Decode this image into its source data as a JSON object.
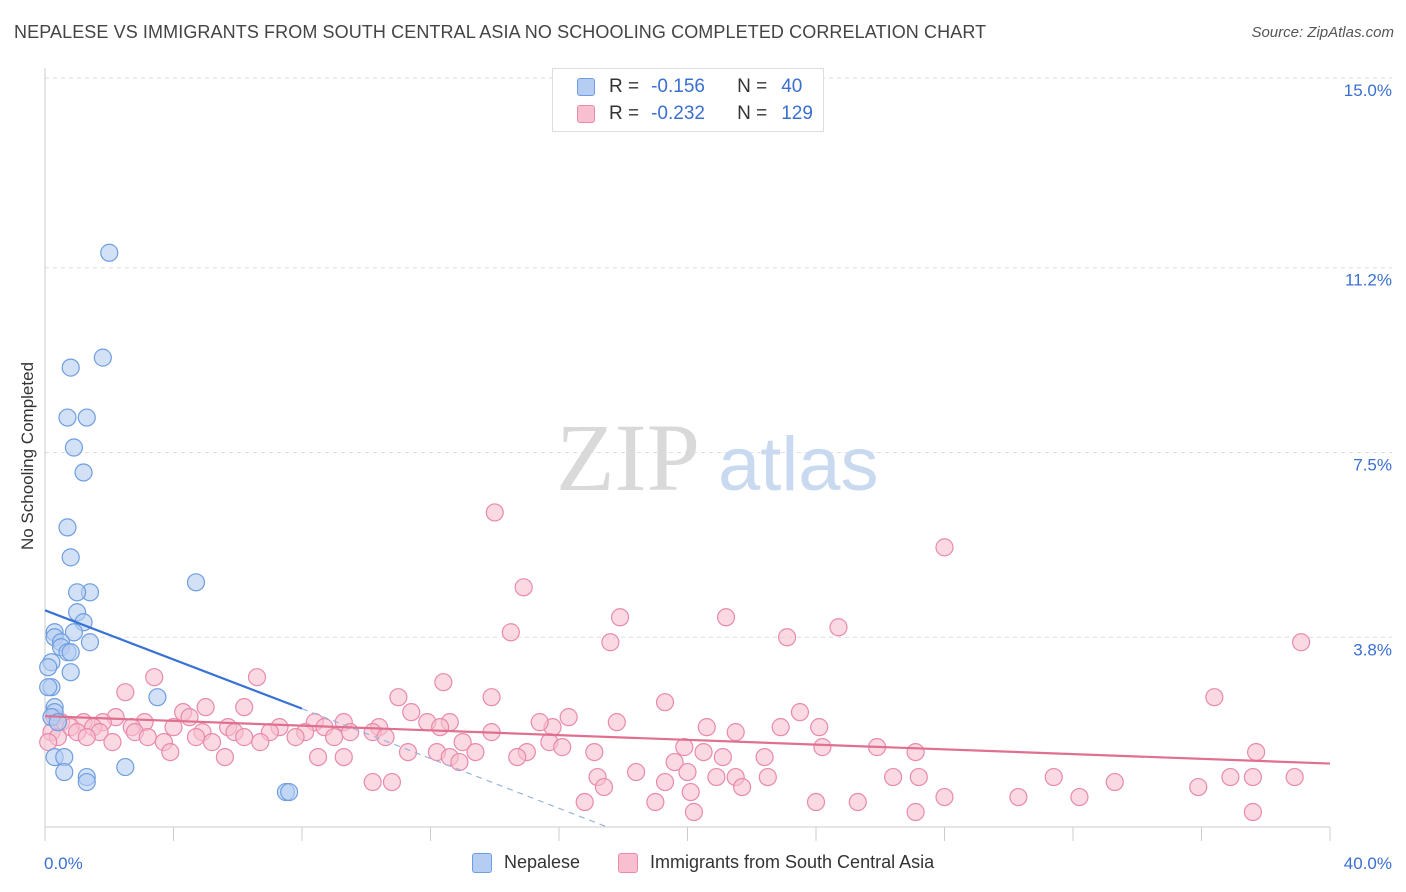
{
  "header": {
    "title": "NEPALESE VS IMMIGRANTS FROM SOUTH CENTRAL ASIA NO SCHOOLING COMPLETED CORRELATION CHART",
    "source": "Source: ZipAtlas.com"
  },
  "legend": {
    "rows": [
      {
        "r_label": "R =",
        "r_value": "-0.156",
        "n_label": "N =",
        "n_value": "40"
      },
      {
        "r_label": "R =",
        "r_value": "-0.232",
        "n_label": "N =",
        "n_value": "129"
      }
    ]
  },
  "watermark": {
    "zip": "ZIP",
    "atlas": "atlas"
  },
  "colors": {
    "nepalese_fill": "#b5cdf2",
    "nepalese_stroke": "#6f9ee0",
    "nepalese_line": "#3872d4",
    "immigrants_fill": "#f7bfd0",
    "immigrants_stroke": "#e98aab",
    "immigrants_line": "#e0708f",
    "tick_label": "#3a6fd0",
    "grid": "#dddddd"
  },
  "chart_data": {
    "type": "scatter",
    "title": "NEPALESE VS IMMIGRANTS FROM SOUTH CENTRAL ASIA NO SCHOOLING COMPLETED CORRELATION CHART",
    "xlabel": "",
    "ylabel": "No Schooling Completed",
    "xlim": [
      0,
      40
    ],
    "ylim": [
      0,
      15.0
    ],
    "y_ticks": [
      3.8,
      7.5,
      11.2,
      15.0
    ],
    "y_tick_labels": [
      "3.8%",
      "7.5%",
      "11.2%",
      "15.0%"
    ],
    "x_tick_labels": [
      "0.0%",
      "40.0%"
    ],
    "grid": true,
    "legend_position": "top-center",
    "series": [
      {
        "name": "Nepalese",
        "points": [
          [
            2.0,
            11.5
          ],
          [
            1.8,
            9.4
          ],
          [
            0.8,
            9.2
          ],
          [
            0.7,
            8.2
          ],
          [
            1.3,
            8.2
          ],
          [
            0.9,
            7.6
          ],
          [
            1.2,
            7.1
          ],
          [
            0.7,
            6.0
          ],
          [
            0.8,
            5.4
          ],
          [
            4.7,
            4.9
          ],
          [
            1.4,
            4.7
          ],
          [
            1.0,
            4.7
          ],
          [
            1.0,
            4.3
          ],
          [
            1.2,
            4.1
          ],
          [
            0.3,
            3.9
          ],
          [
            0.9,
            3.9
          ],
          [
            0.3,
            3.8
          ],
          [
            1.4,
            3.7
          ],
          [
            0.5,
            3.7
          ],
          [
            0.5,
            3.6
          ],
          [
            0.7,
            3.5
          ],
          [
            0.8,
            3.5
          ],
          [
            0.2,
            3.3
          ],
          [
            0.8,
            3.1
          ],
          [
            0.1,
            3.2
          ],
          [
            0.2,
            2.8
          ],
          [
            0.1,
            2.8
          ],
          [
            3.5,
            2.6
          ],
          [
            0.3,
            2.4
          ],
          [
            0.3,
            2.3
          ],
          [
            0.2,
            2.2
          ],
          [
            0.4,
            2.1
          ],
          [
            0.3,
            1.4
          ],
          [
            0.6,
            1.4
          ],
          [
            2.5,
            1.2
          ],
          [
            0.6,
            1.1
          ],
          [
            1.3,
            1.0
          ],
          [
            1.3,
            0.9
          ],
          [
            7.5,
            0.7
          ],
          [
            7.6,
            0.7
          ]
        ],
        "trend": {
          "x": [
            0,
            8
          ],
          "y": [
            4.34,
            2.37
          ],
          "dashed_to": [
            17.5,
            0
          ]
        }
      },
      {
        "name": "Immigrants from South Central Asia",
        "points": [
          [
            14.0,
            6.3
          ],
          [
            28.0,
            5.6
          ],
          [
            14.9,
            4.8
          ],
          [
            17.9,
            4.2
          ],
          [
            21.2,
            4.2
          ],
          [
            24.7,
            4.0
          ],
          [
            14.5,
            3.9
          ],
          [
            23.1,
            3.8
          ],
          [
            17.6,
            3.7
          ],
          [
            39.1,
            3.7
          ],
          [
            3.4,
            3.0
          ],
          [
            6.6,
            3.0
          ],
          [
            12.4,
            2.9
          ],
          [
            2.5,
            2.7
          ],
          [
            11.0,
            2.6
          ],
          [
            13.9,
            2.6
          ],
          [
            19.3,
            2.5
          ],
          [
            36.4,
            2.6
          ],
          [
            5.0,
            2.4
          ],
          [
            6.2,
            2.4
          ],
          [
            11.4,
            2.3
          ],
          [
            4.3,
            2.3
          ],
          [
            4.5,
            2.2
          ],
          [
            23.5,
            2.3
          ],
          [
            24.1,
            2.0
          ],
          [
            2.2,
            2.2
          ],
          [
            0.3,
            2.2
          ],
          [
            0.5,
            2.1
          ],
          [
            1.2,
            2.1
          ],
          [
            1.8,
            2.1
          ],
          [
            3.1,
            2.1
          ],
          [
            8.4,
            2.1
          ],
          [
            9.3,
            2.1
          ],
          [
            11.9,
            2.1
          ],
          [
            12.6,
            2.1
          ],
          [
            15.8,
            2.0
          ],
          [
            17.8,
            2.1
          ],
          [
            0.8,
            2.0
          ],
          [
            1.5,
            2.0
          ],
          [
            2.7,
            2.0
          ],
          [
            4.0,
            2.0
          ],
          [
            5.7,
            2.0
          ],
          [
            7.3,
            2.0
          ],
          [
            8.7,
            2.0
          ],
          [
            10.4,
            2.0
          ],
          [
            12.3,
            2.0
          ],
          [
            15.4,
            2.1
          ],
          [
            16.3,
            2.2
          ],
          [
            20.6,
            2.0
          ],
          [
            22.9,
            2.0
          ],
          [
            0.2,
            1.9
          ],
          [
            1.0,
            1.9
          ],
          [
            1.7,
            1.9
          ],
          [
            2.8,
            1.9
          ],
          [
            4.9,
            1.9
          ],
          [
            5.9,
            1.9
          ],
          [
            7.0,
            1.9
          ],
          [
            8.1,
            1.9
          ],
          [
            9.5,
            1.9
          ],
          [
            10.2,
            1.9
          ],
          [
            13.9,
            1.9
          ],
          [
            21.5,
            1.9
          ],
          [
            0.4,
            1.8
          ],
          [
            1.3,
            1.8
          ],
          [
            3.2,
            1.8
          ],
          [
            4.7,
            1.8
          ],
          [
            6.2,
            1.8
          ],
          [
            7.8,
            1.8
          ],
          [
            9.0,
            1.8
          ],
          [
            10.6,
            1.8
          ],
          [
            0.1,
            1.7
          ],
          [
            2.1,
            1.7
          ],
          [
            3.7,
            1.7
          ],
          [
            5.2,
            1.7
          ],
          [
            6.7,
            1.7
          ],
          [
            13.0,
            1.7
          ],
          [
            15.7,
            1.7
          ],
          [
            16.1,
            1.6
          ],
          [
            19.9,
            1.6
          ],
          [
            24.2,
            1.6
          ],
          [
            25.9,
            1.6
          ],
          [
            11.3,
            1.5
          ],
          [
            12.2,
            1.5
          ],
          [
            13.4,
            1.5
          ],
          [
            15.0,
            1.5
          ],
          [
            17.1,
            1.5
          ],
          [
            20.5,
            1.5
          ],
          [
            27.1,
            1.5
          ],
          [
            37.7,
            1.5
          ],
          [
            3.9,
            1.5
          ],
          [
            5.6,
            1.4
          ],
          [
            8.5,
            1.4
          ],
          [
            9.3,
            1.4
          ],
          [
            12.6,
            1.4
          ],
          [
            14.7,
            1.4
          ],
          [
            21.1,
            1.4
          ],
          [
            22.4,
            1.4
          ],
          [
            12.9,
            1.3
          ],
          [
            19.6,
            1.3
          ],
          [
            18.4,
            1.1
          ],
          [
            20.0,
            1.1
          ],
          [
            21.5,
            1.0
          ],
          [
            22.5,
            1.0
          ],
          [
            26.4,
            1.0
          ],
          [
            27.2,
            1.0
          ],
          [
            17.2,
            1.0
          ],
          [
            19.3,
            0.9
          ],
          [
            20.9,
            1.0
          ],
          [
            31.4,
            1.0
          ],
          [
            33.3,
            0.9
          ],
          [
            36.9,
            1.0
          ],
          [
            37.6,
            1.0
          ],
          [
            38.9,
            1.0
          ],
          [
            10.2,
            0.9
          ],
          [
            10.8,
            0.9
          ],
          [
            17.4,
            0.8
          ],
          [
            21.7,
            0.8
          ],
          [
            35.9,
            0.8
          ],
          [
            20.1,
            0.7
          ],
          [
            28.0,
            0.6
          ],
          [
            30.3,
            0.6
          ],
          [
            32.2,
            0.6
          ],
          [
            16.8,
            0.5
          ],
          [
            19.0,
            0.5
          ],
          [
            24.0,
            0.5
          ],
          [
            25.3,
            0.5
          ],
          [
            20.2,
            0.3
          ],
          [
            27.1,
            0.3
          ],
          [
            37.6,
            0.3
          ]
        ],
        "trend": {
          "x": [
            0,
            40
          ],
          "y": [
            2.22,
            1.27
          ]
        }
      }
    ]
  },
  "bottom_legend": {
    "items": [
      "Nepalese",
      "Immigrants from South Central Asia"
    ]
  }
}
